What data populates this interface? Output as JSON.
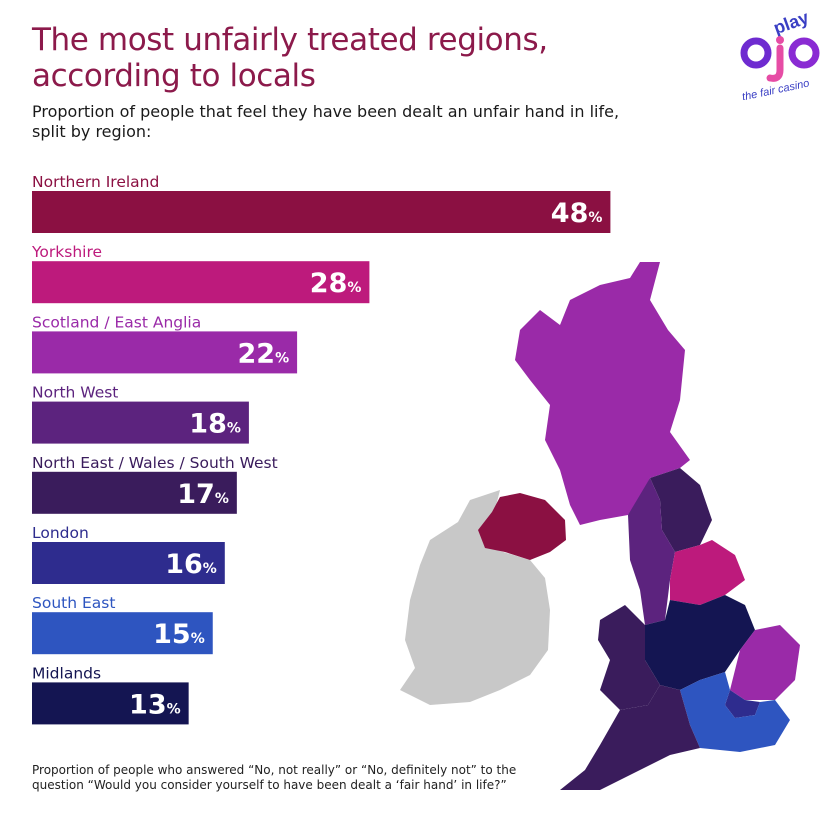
{
  "header": {
    "title_line1": "The most unfairly treated regions,",
    "title_line2": "according to locals",
    "subtitle_line1": "Proportion of people that feel they have been dealt an unfair hand in life,",
    "subtitle_line2": "split by region:"
  },
  "logo": {
    "play": "play",
    "ojo": "ojo",
    "tagline": "the fair casino"
  },
  "footnote": {
    "line1": "Proportion of people who answered “No, not really” or “No, definitely not” to the",
    "line2": "question “Would you consider yourself to have been dealt a ‘fair hand’ in life?”"
  },
  "chart_data": {
    "type": "bar",
    "orientation": "horizontal",
    "unit": "%",
    "categories": [
      "Northern Ireland",
      "Yorkshire",
      "Scotland / East Anglia",
      "North West",
      "North East / Wales / South West",
      "London",
      "South East",
      "Midlands"
    ],
    "values": [
      48,
      28,
      22,
      18,
      17,
      16,
      15,
      13
    ],
    "colors": [
      "#8b1042",
      "#bd1a7c",
      "#9a2aa8",
      "#5c237e",
      "#3a1c5c",
      "#2e2c8e",
      "#2e55c0",
      "#141552"
    ],
    "label_colors": [
      "#8b1042",
      "#bd1a7c",
      "#9a2aa8",
      "#5c237e",
      "#3a1c5c",
      "#2e2c8e",
      "#2e55c0",
      "#141552"
    ]
  },
  "colors": {
    "title": "#8c1a4b",
    "ireland_grey": "#c8c8c8"
  }
}
